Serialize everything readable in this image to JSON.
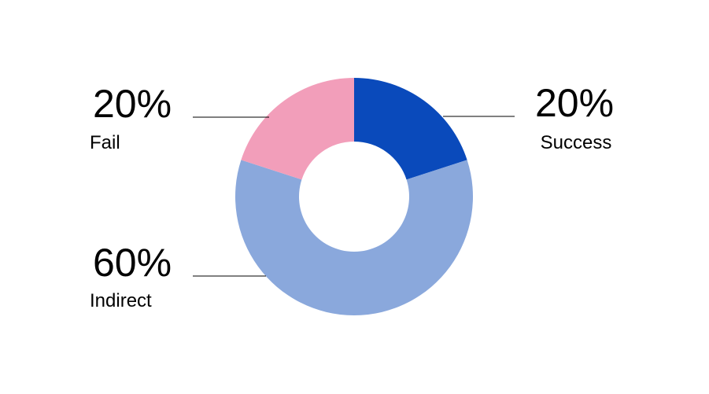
{
  "chart_data": {
    "type": "pie",
    "variant": "donut",
    "categories": [
      "Success",
      "Indirect",
      "Fail"
    ],
    "values": [
      20,
      60,
      20
    ],
    "value_labels": [
      "20%",
      "60%",
      "20%"
    ],
    "colors": [
      "#0a4abb",
      "#8aa8dc",
      "#f29eba"
    ],
    "start_angle_deg": 0,
    "direction": "clockwise",
    "legend": "none",
    "data_label_placement": "outside-with-leader-lines"
  }
}
